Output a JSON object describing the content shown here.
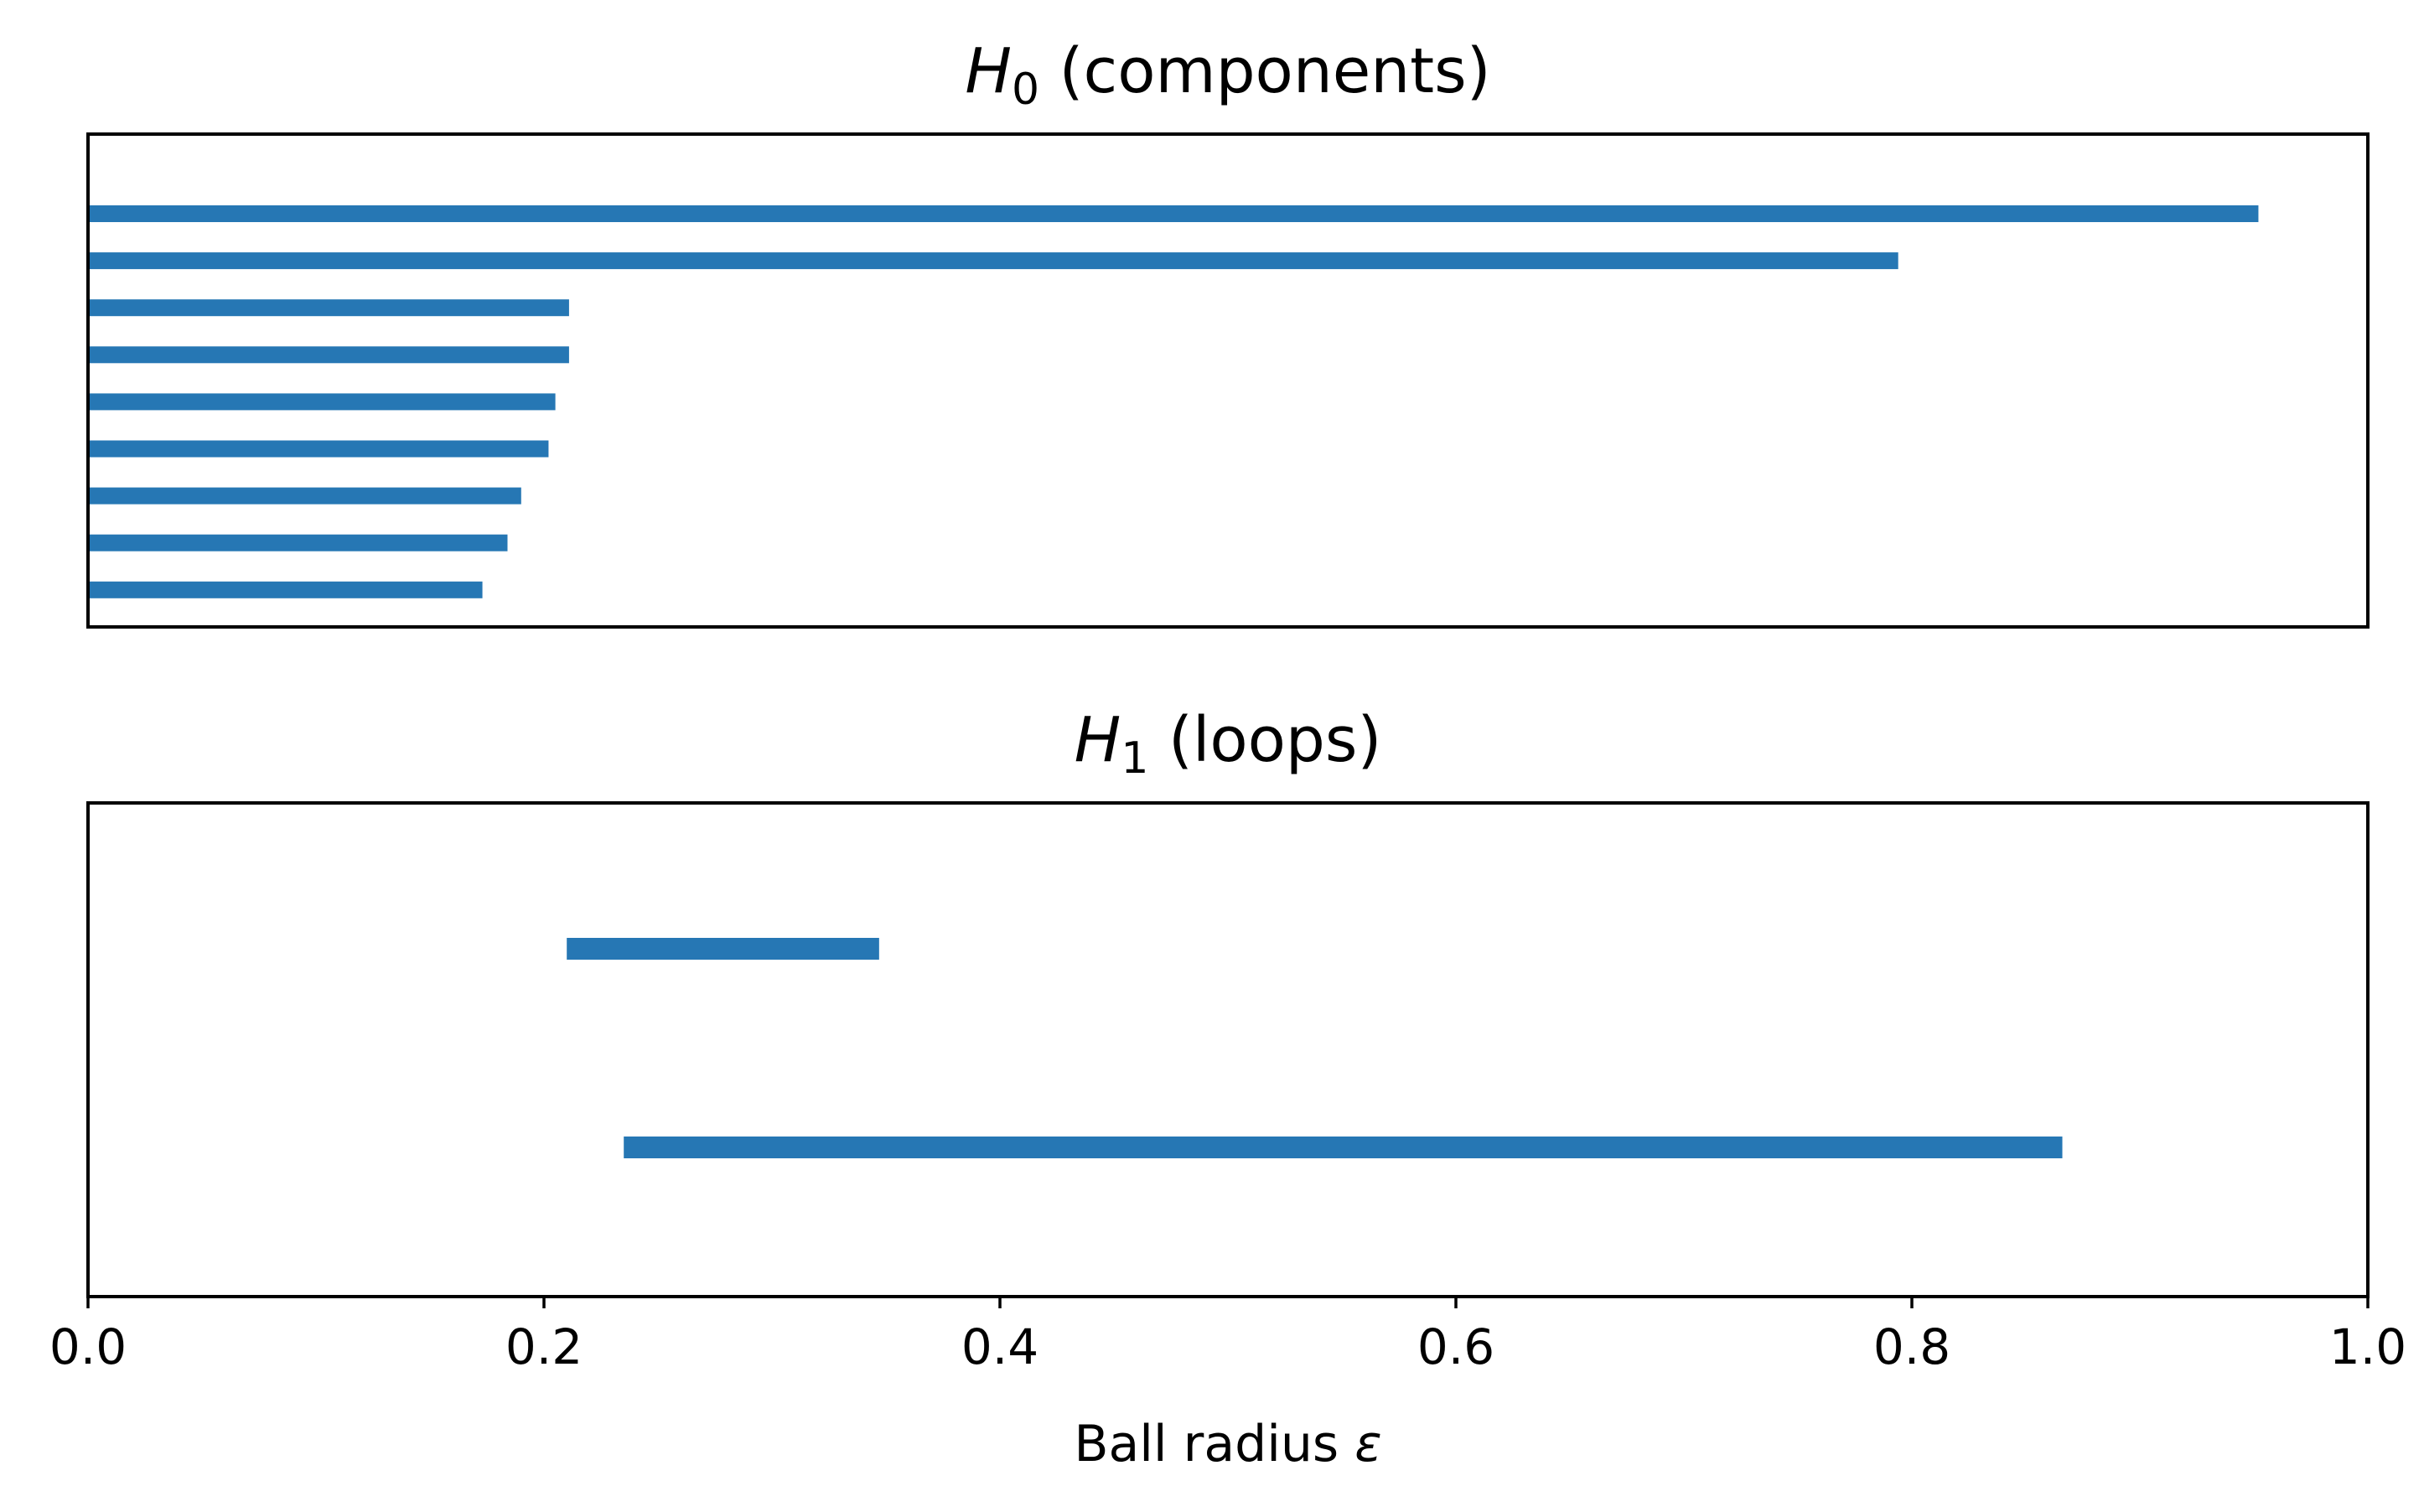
{
  "chart_data": [
    {
      "type": "bar",
      "orientation": "horizontal",
      "title": "H0 (components)",
      "title_symbol": "H",
      "title_subscript": "0",
      "title_rest": " (components)",
      "xlim": [
        0.0,
        1.0
      ],
      "show_yticks": false,
      "grid": false,
      "color": "#2677b4",
      "bars": [
        {
          "birth": 0.0,
          "death": 0.952
        },
        {
          "birth": 0.0,
          "death": 0.794
        },
        {
          "birth": 0.0,
          "death": 0.211
        },
        {
          "birth": 0.0,
          "death": 0.211
        },
        {
          "birth": 0.0,
          "death": 0.205
        },
        {
          "birth": 0.0,
          "death": 0.202
        },
        {
          "birth": 0.0,
          "death": 0.19
        },
        {
          "birth": 0.0,
          "death": 0.184
        },
        {
          "birth": 0.0,
          "death": 0.173
        }
      ]
    },
    {
      "type": "bar",
      "orientation": "horizontal",
      "title": "H1 (loops)",
      "title_symbol": "H",
      "title_subscript": "1",
      "title_rest": " (loops)",
      "xlim": [
        0.0,
        1.0
      ],
      "show_yticks": false,
      "grid": false,
      "color": "#2677b4",
      "xlabel": "Ball radius ε",
      "xlabel_text": "Ball radius ",
      "xlabel_symbol": "ε",
      "xticks": [
        "0.0",
        "0.2",
        "0.4",
        "0.6",
        "0.8",
        "1.0"
      ],
      "xtick_values": [
        0.0,
        0.2,
        0.4,
        0.6,
        0.8,
        1.0
      ],
      "bars": [
        {
          "birth": 0.21,
          "death": 0.347
        },
        {
          "birth": 0.235,
          "death": 0.866
        }
      ]
    }
  ]
}
